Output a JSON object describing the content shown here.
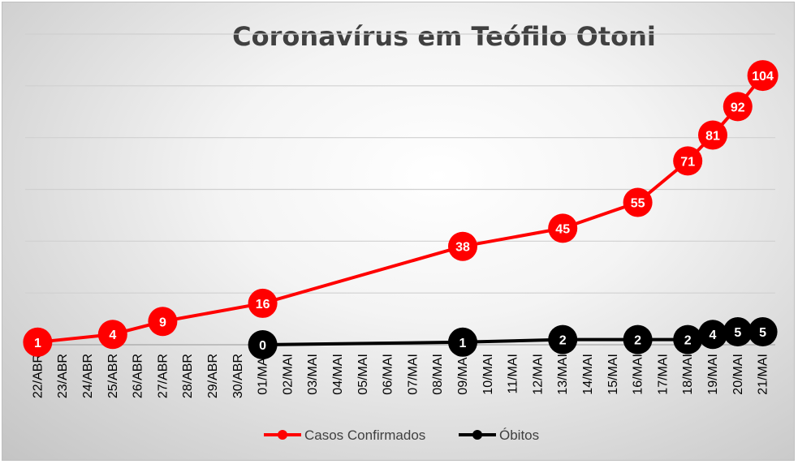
{
  "chart_data": {
    "type": "line",
    "title": "Coronavírus em Teófilo Otoni",
    "categories": [
      "22/ABR",
      "23/ABR",
      "24/ABR",
      "25/ABR",
      "26/ABR",
      "27/ABR",
      "28/ABR",
      "29/ABR",
      "30/ABR",
      "01/MAI",
      "02/MAI",
      "03/MAI",
      "04/MAI",
      "05/MAI",
      "06/MAI",
      "07/MAI",
      "08/MAI",
      "09/MAI",
      "10/MAI",
      "11/MAI",
      "12/MAI",
      "13/MAI",
      "14/MAI",
      "15/MAI",
      "16/MAI",
      "17/MAI",
      "18/MAI",
      "19/MAI",
      "20/MAI",
      "21/MAI"
    ],
    "ylim": [
      0,
      120
    ],
    "grid": true,
    "legend_position": "bottom",
    "series": [
      {
        "name": "Casos Confirmados",
        "color": "#ff0000",
        "points": [
          {
            "x": "22/ABR",
            "y": 1
          },
          {
            "x": "25/ABR",
            "y": 4
          },
          {
            "x": "27/ABR",
            "y": 9
          },
          {
            "x": "01/MAI",
            "y": 16
          },
          {
            "x": "09/MAI",
            "y": 38
          },
          {
            "x": "13/MAI",
            "y": 45
          },
          {
            "x": "16/MAI",
            "y": 55
          },
          {
            "x": "18/MAI",
            "y": 71
          },
          {
            "x": "19/MAI",
            "y": 81
          },
          {
            "x": "20/MAI",
            "y": 92
          },
          {
            "x": "21/MAI",
            "y": 104
          }
        ]
      },
      {
        "name": "Óbitos",
        "color": "#000000",
        "points": [
          {
            "x": "01/MAI",
            "y": 0
          },
          {
            "x": "09/MAI",
            "y": 1
          },
          {
            "x": "13/MAI",
            "y": 2
          },
          {
            "x": "16/MAI",
            "y": 2
          },
          {
            "x": "18/MAI",
            "y": 2
          },
          {
            "x": "19/MAI",
            "y": 4
          },
          {
            "x": "20/MAI",
            "y": 5
          },
          {
            "x": "21/MAI",
            "y": 5
          }
        ]
      }
    ]
  }
}
